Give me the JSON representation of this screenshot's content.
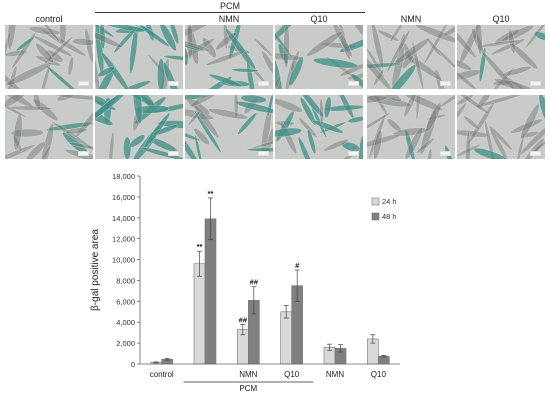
{
  "panels": {
    "group_label": "PCM",
    "columns": [
      "control",
      "",
      "NMN",
      "Q10",
      "NMN",
      "Q10"
    ],
    "rows": 2,
    "colors": {
      "background": "#c9cbc8",
      "cell": "#6f7574",
      "cell_highlight": "#eef0ee",
      "stain": "#3f8f86"
    },
    "stain_level_row1": [
      0.05,
      0.8,
      0.35,
      0.3,
      0.08,
      0.05
    ],
    "stain_level_row2": [
      0.08,
      0.85,
      0.4,
      0.45,
      0.1,
      0.05
    ]
  },
  "chart_data": {
    "type": "bar",
    "title": "",
    "xlabel": "",
    "ylabel": "β-gal positive area",
    "ylim": [
      0,
      18000
    ],
    "yticks": [
      0,
      2000,
      4000,
      6000,
      8000,
      10000,
      12000,
      14000,
      16000,
      18000
    ],
    "ytick_labels": [
      "0",
      "2,000",
      "4,000",
      "6,000",
      "8,000",
      "10,000",
      "12,000",
      "14,000",
      "16,000",
      "18,000"
    ],
    "categories": [
      "control",
      "",
      "NMN",
      "Q10",
      "NMN",
      "Q10"
    ],
    "group_label": "PCM",
    "legend_position": "right",
    "series": [
      {
        "name": "24 h",
        "color": "#d9d9d9",
        "values": [
          150,
          9600,
          3300,
          5000,
          1600,
          2400
        ],
        "errors": [
          50,
          1200,
          500,
          600,
          300,
          400
        ],
        "annotations": [
          "",
          "**",
          "##",
          "",
          "",
          ""
        ]
      },
      {
        "name": "48 h",
        "color": "#808080",
        "values": [
          450,
          13900,
          6100,
          7500,
          1500,
          750
        ],
        "errors": [
          80,
          2000,
          1300,
          1500,
          350,
          80
        ],
        "annotations": [
          "",
          "**",
          "##",
          "#",
          "",
          ""
        ]
      }
    ]
  }
}
